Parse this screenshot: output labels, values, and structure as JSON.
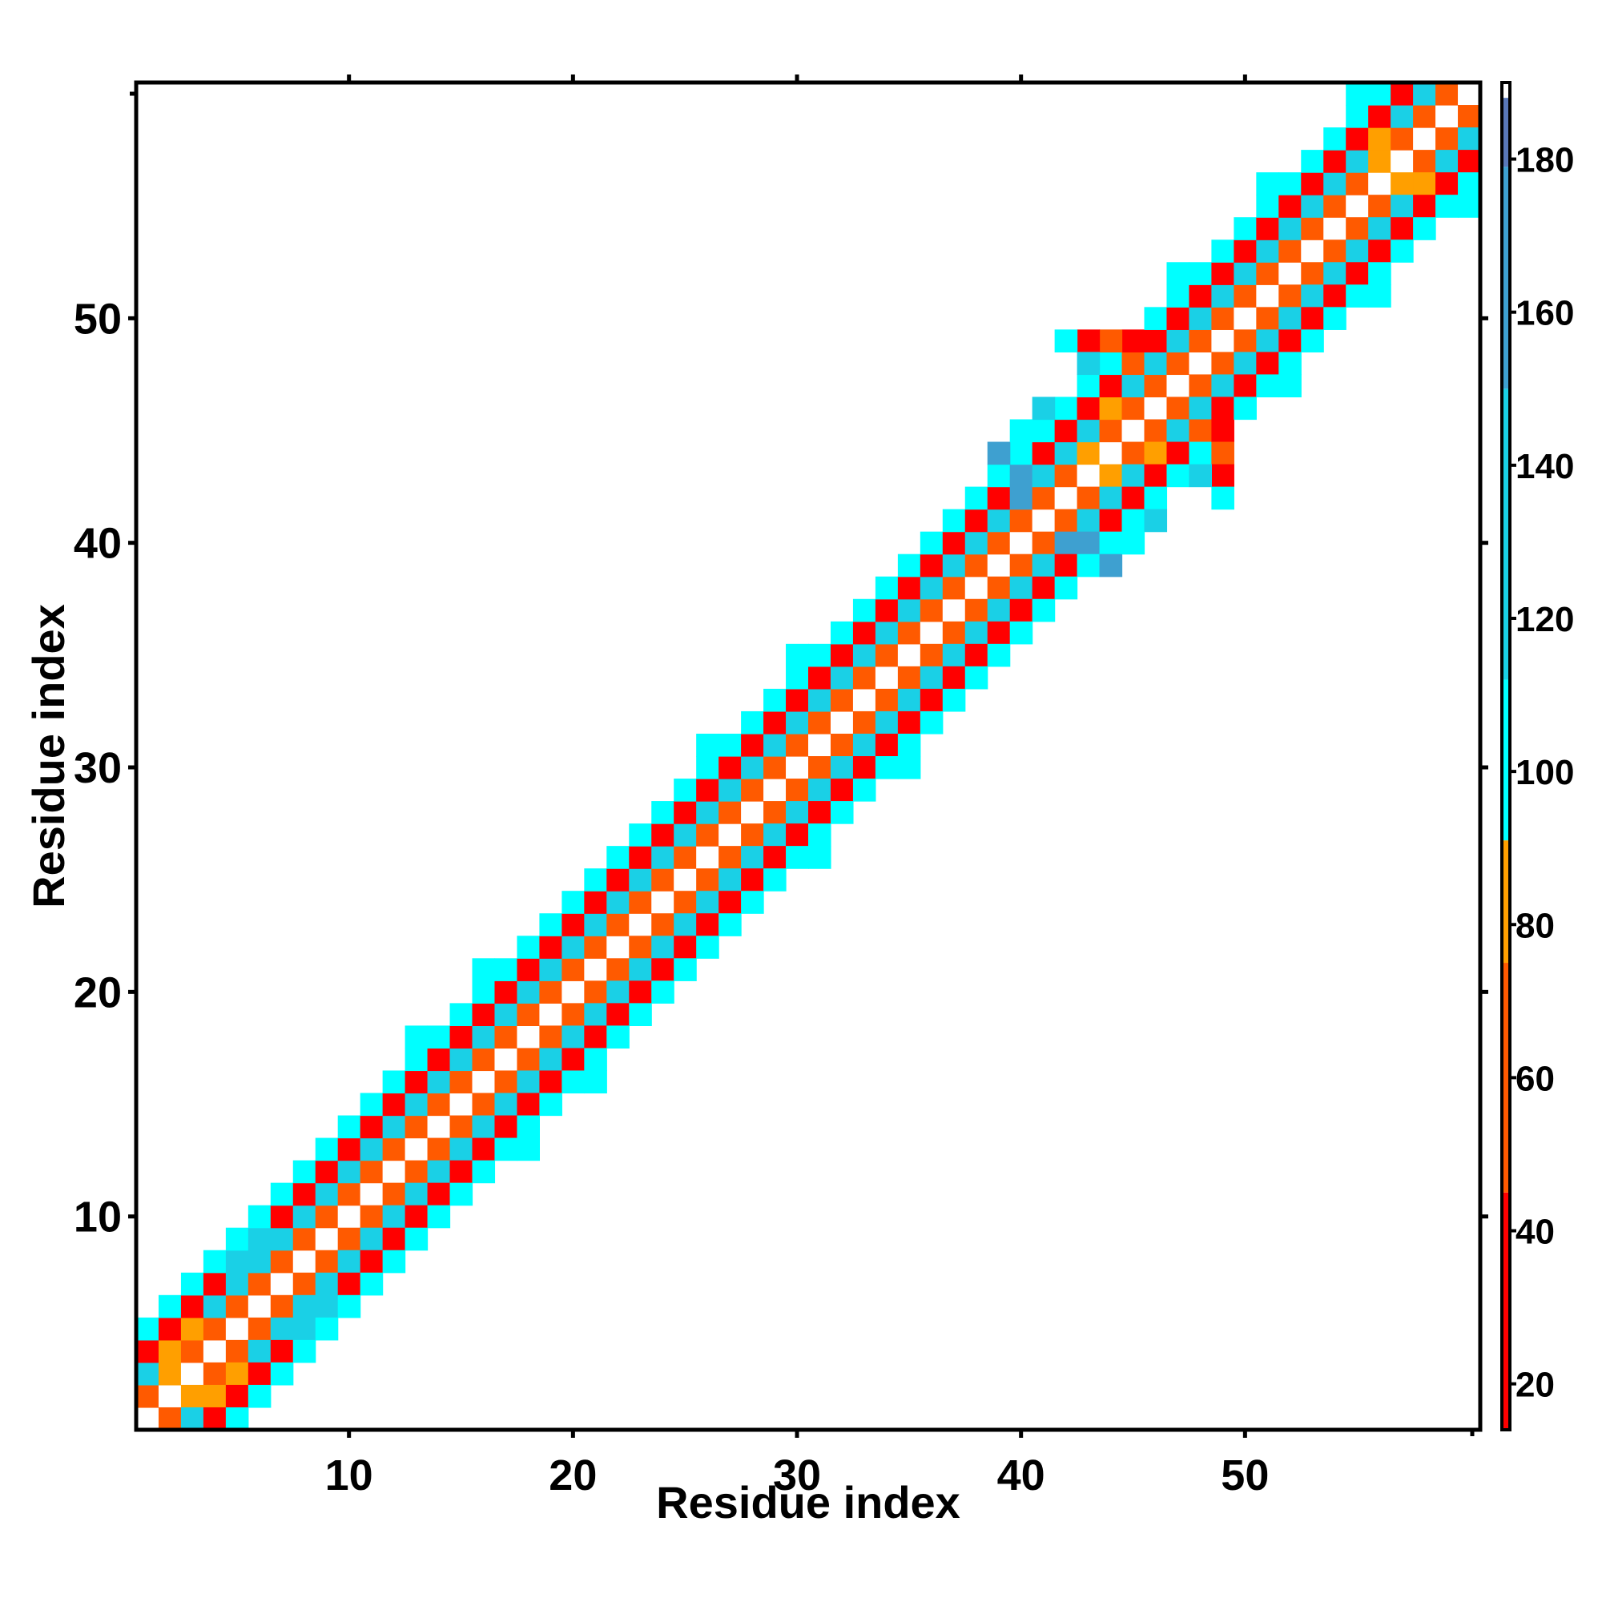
{
  "chart_data": {
    "type": "heatmap",
    "title": "",
    "xlabel": "Residue index",
    "ylabel": "Residue index",
    "xlim": [
      0.5,
      60.5
    ],
    "ylim": [
      0.5,
      60.5
    ],
    "x_ticks": [
      10,
      20,
      30,
      40,
      50
    ],
    "x_tick_labels": [
      "10",
      "20",
      "30",
      "40",
      "50"
    ],
    "y_ticks": [
      10,
      20,
      30,
      40,
      50
    ],
    "y_tick_labels": [
      "10",
      "20",
      "30",
      "40",
      "50"
    ],
    "grid": false,
    "legend": "none",
    "colorbar": {
      "placement": "right",
      "range": [
        14,
        190
      ],
      "ticks": [
        20,
        40,
        60,
        80,
        100,
        120,
        140,
        160,
        180
      ],
      "tick_labels": [
        "20",
        "40",
        "60",
        "80",
        "100",
        "120",
        "140",
        "160",
        "180"
      ],
      "colors": [
        {
          "from": 14,
          "to": 45,
          "color": "#ff0000"
        },
        {
          "from": 45,
          "to": 75,
          "color": "#ff5a00"
        },
        {
          "from": 75,
          "to": 91,
          "color": "#ff9f00"
        },
        {
          "from": 91,
          "to": 112,
          "color": "#00ffff"
        },
        {
          "from": 112,
          "to": 150,
          "color": "#1ad0e6"
        },
        {
          "from": 150,
          "to": 179,
          "color": "#3ea0d0"
        },
        {
          "from": 179,
          "to": 188,
          "color": "#5a78b8"
        },
        {
          "from": 188,
          "to": 190,
          "color": "#ffffff"
        }
      ]
    },
    "band": {
      "description_of_values": "symmetric distance map; value depends on |i-j|, diagonal is highest",
      "by_offset": [
        {
          "offset": 0,
          "value": 190
        },
        {
          "offset": 1,
          "value": 65
        },
        {
          "offset": 2,
          "value": 125
        },
        {
          "offset": 3,
          "value": 30
        },
        {
          "offset": 4,
          "value": 100
        }
      ],
      "extra_cells": [
        {
          "x": 3,
          "y": 2,
          "value": 80
        },
        {
          "x": 4,
          "y": 2,
          "value": 80
        },
        {
          "x": 2,
          "y": 3,
          "value": 80
        },
        {
          "x": 2,
          "y": 4,
          "value": 80
        },
        {
          "x": 5,
          "y": 3,
          "value": 80
        },
        {
          "x": 3,
          "y": 5,
          "value": 80
        },
        {
          "x": 44,
          "y": 43,
          "value": 80
        },
        {
          "x": 43,
          "y": 44,
          "value": 80
        },
        {
          "x": 46,
          "y": 44,
          "value": 80
        },
        {
          "x": 44,
          "y": 46,
          "value": 80
        },
        {
          "x": 57,
          "y": 56,
          "value": 80
        },
        {
          "x": 56,
          "y": 57,
          "value": 80
        },
        {
          "x": 58,
          "y": 56,
          "value": 80
        },
        {
          "x": 56,
          "y": 58,
          "value": 80
        },
        {
          "x": 40,
          "y": 42,
          "value": 160
        },
        {
          "x": 42,
          "y": 40,
          "value": 160
        },
        {
          "x": 43,
          "y": 40,
          "value": 160
        },
        {
          "x": 40,
          "y": 43,
          "value": 160
        },
        {
          "x": 44,
          "y": 39,
          "value": 160
        },
        {
          "x": 39,
          "y": 44,
          "value": 160
        },
        {
          "x": 5,
          "y": 8,
          "value": 125
        },
        {
          "x": 8,
          "y": 5,
          "value": 125
        },
        {
          "x": 6,
          "y": 9,
          "value": 125
        },
        {
          "x": 9,
          "y": 6,
          "value": 125
        },
        {
          "x": 7,
          "y": 9,
          "value": 125
        },
        {
          "x": 9,
          "y": 7,
          "value": 125
        },
        {
          "x": 44,
          "y": 49,
          "value": 65
        },
        {
          "x": 49,
          "y": 44,
          "value": 65
        },
        {
          "x": 45,
          "y": 49,
          "value": 30
        },
        {
          "x": 49,
          "y": 45,
          "value": 30
        },
        {
          "x": 43,
          "y": 49,
          "value": 30
        },
        {
          "x": 49,
          "y": 43,
          "value": 30
        },
        {
          "x": 45,
          "y": 48,
          "value": 65
        },
        {
          "x": 48,
          "y": 45,
          "value": 65
        },
        {
          "x": 42,
          "y": 49,
          "value": 100
        },
        {
          "x": 49,
          "y": 42,
          "value": 100
        },
        {
          "x": 43,
          "y": 48,
          "value": 125
        },
        {
          "x": 48,
          "y": 43,
          "value": 125
        },
        {
          "x": 41,
          "y": 46,
          "value": 125
        },
        {
          "x": 46,
          "y": 41,
          "value": 125
        },
        {
          "x": 40,
          "y": 45,
          "value": 100
        },
        {
          "x": 45,
          "y": 40,
          "value": 100
        },
        {
          "x": 26,
          "y": 31,
          "value": 100
        },
        {
          "x": 31,
          "y": 26,
          "value": 100
        },
        {
          "x": 30,
          "y": 35,
          "value": 100
        },
        {
          "x": 35,
          "y": 30,
          "value": 100
        },
        {
          "x": 16,
          "y": 21,
          "value": 100
        },
        {
          "x": 21,
          "y": 16,
          "value": 100
        },
        {
          "x": 13,
          "y": 18,
          "value": 100
        },
        {
          "x": 18,
          "y": 13,
          "value": 100
        },
        {
          "x": 47,
          "y": 52,
          "value": 100
        },
        {
          "x": 52,
          "y": 47,
          "value": 100
        },
        {
          "x": 51,
          "y": 56,
          "value": 100
        },
        {
          "x": 56,
          "y": 51,
          "value": 100
        },
        {
          "x": 55,
          "y": 60,
          "value": 100
        },
        {
          "x": 60,
          "y": 55,
          "value": 100
        }
      ]
    }
  }
}
